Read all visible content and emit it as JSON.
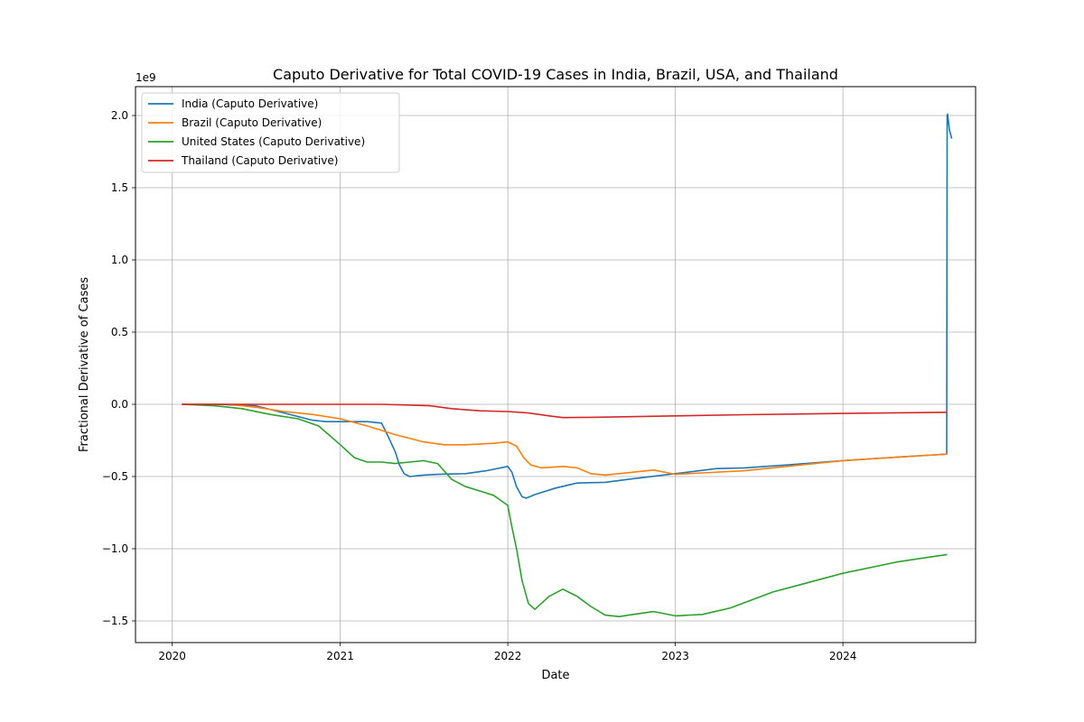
{
  "chart_data": {
    "type": "line",
    "title": "Caputo Derivative for Total COVID-19 Cases in India, Brazil, USA, and Thailand",
    "xlabel": "Date",
    "ylabel": "Fractional Derivative of Cases",
    "y_offset_label": "1e9",
    "x_ticks": [
      "2020",
      "2021",
      "2022",
      "2023",
      "2024"
    ],
    "y_ticks": [
      "−1.5",
      "−1.0",
      "−0.5",
      "0.0",
      "0.5",
      "1.0",
      "1.5",
      "2.0"
    ],
    "x_range": [
      "2019-10-13",
      "2024-10-16"
    ],
    "ylim": [
      -1.65,
      2.2
    ],
    "grid": true,
    "legend_position": "upper left",
    "series": [
      {
        "name": "India (Caputo Derivative)",
        "color": "#1f77b4",
        "points": [
          [
            "2020-01-22",
            0.0
          ],
          [
            "2020-04-01",
            0.0
          ],
          [
            "2020-07-01",
            -0.01
          ],
          [
            "2020-09-01",
            -0.06
          ],
          [
            "2020-11-01",
            -0.11
          ],
          [
            "2020-12-01",
            -0.12
          ],
          [
            "2021-03-01",
            -0.12
          ],
          [
            "2021-04-01",
            -0.13
          ],
          [
            "2021-04-15",
            -0.22
          ],
          [
            "2021-05-01",
            -0.33
          ],
          [
            "2021-05-10",
            -0.42
          ],
          [
            "2021-05-20",
            -0.48
          ],
          [
            "2021-06-01",
            -0.5
          ],
          [
            "2021-07-01",
            -0.49
          ],
          [
            "2021-08-01",
            -0.485
          ],
          [
            "2021-10-01",
            -0.48
          ],
          [
            "2021-11-15",
            -0.46
          ],
          [
            "2022-01-01",
            -0.43
          ],
          [
            "2022-01-10",
            -0.47
          ],
          [
            "2022-01-20",
            -0.57
          ],
          [
            "2022-02-01",
            -0.64
          ],
          [
            "2022-02-10",
            -0.65
          ],
          [
            "2022-03-01",
            -0.625
          ],
          [
            "2022-04-15",
            -0.58
          ],
          [
            "2022-06-01",
            -0.545
          ],
          [
            "2022-08-01",
            -0.54
          ],
          [
            "2022-10-01",
            -0.515
          ],
          [
            "2023-01-01",
            -0.48
          ],
          [
            "2023-04-01",
            -0.445
          ],
          [
            "2023-06-01",
            -0.44
          ],
          [
            "2023-09-01",
            -0.42
          ],
          [
            "2024-01-01",
            -0.39
          ],
          [
            "2024-05-01",
            -0.365
          ],
          [
            "2024-08-14",
            -0.345
          ],
          [
            "2024-08-15",
            2.0
          ],
          [
            "2024-08-16",
            2.01
          ],
          [
            "2024-08-20",
            1.9
          ],
          [
            "2024-08-25",
            1.84
          ]
        ]
      },
      {
        "name": "Brazil (Caputo Derivative)",
        "color": "#ff7f0e",
        "points": [
          [
            "2020-01-22",
            0.0
          ],
          [
            "2020-05-01",
            0.0
          ],
          [
            "2020-07-01",
            -0.02
          ],
          [
            "2020-09-01",
            -0.05
          ],
          [
            "2020-11-01",
            -0.07
          ],
          [
            "2021-01-01",
            -0.1
          ],
          [
            "2021-03-01",
            -0.15
          ],
          [
            "2021-05-01",
            -0.21
          ],
          [
            "2021-07-01",
            -0.26
          ],
          [
            "2021-08-15",
            -0.28
          ],
          [
            "2021-10-01",
            -0.28
          ],
          [
            "2021-12-01",
            -0.27
          ],
          [
            "2022-01-01",
            -0.26
          ],
          [
            "2022-01-20",
            -0.29
          ],
          [
            "2022-02-05",
            -0.37
          ],
          [
            "2022-02-20",
            -0.42
          ],
          [
            "2022-03-15",
            -0.44
          ],
          [
            "2022-05-01",
            -0.43
          ],
          [
            "2022-06-01",
            -0.44
          ],
          [
            "2022-07-01",
            -0.48
          ],
          [
            "2022-08-01",
            -0.49
          ],
          [
            "2022-10-01",
            -0.47
          ],
          [
            "2022-11-15",
            -0.455
          ],
          [
            "2023-01-01",
            -0.485
          ],
          [
            "2023-03-01",
            -0.475
          ],
          [
            "2023-06-01",
            -0.46
          ],
          [
            "2023-09-01",
            -0.43
          ],
          [
            "2024-01-01",
            -0.39
          ],
          [
            "2024-05-01",
            -0.365
          ],
          [
            "2024-08-15",
            -0.345
          ]
        ]
      },
      {
        "name": "United States (Caputo Derivative)",
        "color": "#2ca02c",
        "points": [
          [
            "2020-01-22",
            0.0
          ],
          [
            "2020-04-01",
            -0.01
          ],
          [
            "2020-06-01",
            -0.03
          ],
          [
            "2020-08-01",
            -0.07
          ],
          [
            "2020-10-01",
            -0.1
          ],
          [
            "2020-11-15",
            -0.15
          ],
          [
            "2021-01-01",
            -0.28
          ],
          [
            "2021-02-01",
            -0.37
          ],
          [
            "2021-03-01",
            -0.4
          ],
          [
            "2021-04-01",
            -0.4
          ],
          [
            "2021-05-01",
            -0.41
          ],
          [
            "2021-06-01",
            -0.4
          ],
          [
            "2021-07-01",
            -0.39
          ],
          [
            "2021-08-01",
            -0.41
          ],
          [
            "2021-09-01",
            -0.52
          ],
          [
            "2021-10-01",
            -0.57
          ],
          [
            "2021-11-01",
            -0.6
          ],
          [
            "2021-12-01",
            -0.63
          ],
          [
            "2022-01-01",
            -0.7
          ],
          [
            "2022-01-10",
            -0.85
          ],
          [
            "2022-01-20",
            -1.0
          ],
          [
            "2022-02-01",
            -1.22
          ],
          [
            "2022-02-15",
            -1.38
          ],
          [
            "2022-03-01",
            -1.42
          ],
          [
            "2022-04-01",
            -1.33
          ],
          [
            "2022-05-01",
            -1.28
          ],
          [
            "2022-06-01",
            -1.33
          ],
          [
            "2022-07-01",
            -1.4
          ],
          [
            "2022-08-01",
            -1.46
          ],
          [
            "2022-09-01",
            -1.47
          ],
          [
            "2022-10-01",
            -1.455
          ],
          [
            "2022-11-15",
            -1.435
          ],
          [
            "2023-01-01",
            -1.465
          ],
          [
            "2023-03-01",
            -1.455
          ],
          [
            "2023-05-01",
            -1.41
          ],
          [
            "2023-08-01",
            -1.3
          ],
          [
            "2024-01-01",
            -1.17
          ],
          [
            "2024-05-01",
            -1.09
          ],
          [
            "2024-08-15",
            -1.04
          ]
        ]
      },
      {
        "name": "Thailand (Caputo Derivative)",
        "color": "#d62728",
        "points": [
          [
            "2020-01-22",
            0.0
          ],
          [
            "2021-04-01",
            0.0
          ],
          [
            "2021-07-15",
            -0.01
          ],
          [
            "2021-09-01",
            -0.03
          ],
          [
            "2021-11-01",
            -0.045
          ],
          [
            "2022-01-01",
            -0.05
          ],
          [
            "2022-02-15",
            -0.06
          ],
          [
            "2022-04-01",
            -0.08
          ],
          [
            "2022-05-01",
            -0.092
          ],
          [
            "2022-07-01",
            -0.09
          ],
          [
            "2023-01-01",
            -0.08
          ],
          [
            "2023-06-01",
            -0.072
          ],
          [
            "2024-01-01",
            -0.063
          ],
          [
            "2024-08-15",
            -0.055
          ]
        ]
      }
    ]
  }
}
